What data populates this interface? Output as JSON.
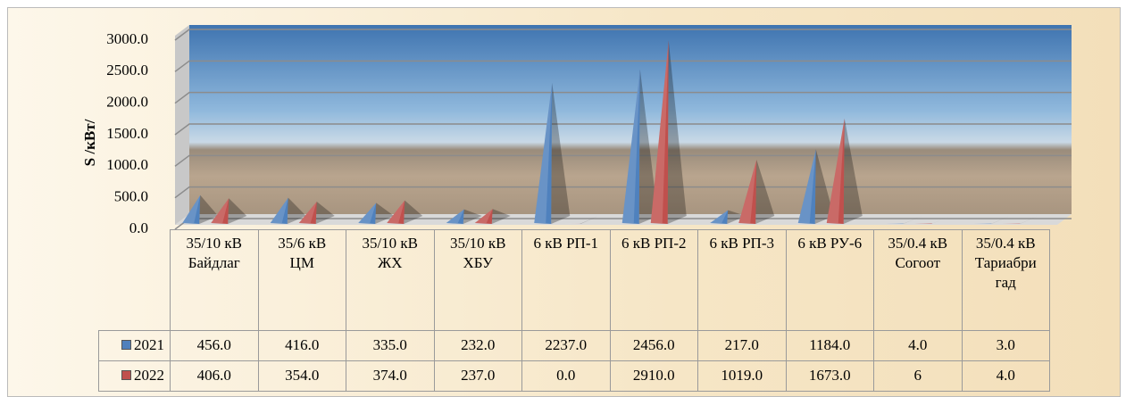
{
  "chart_data": {
    "type": "pyramid",
    "y_axis_label": "S /кВт/",
    "categories": [
      "35/10 кВ Байдлаг",
      "35/6 кВ ЦМ",
      "35/10 кВ ЖХ",
      "35/10 кВ ХБУ",
      "6 кВ РП-1",
      "6 кВ РП-2",
      "6 кВ РП-3",
      "6 кВ РУ-6",
      "35/0.4 кВ Согоот",
      "35/0.4 кВ Тариабригад"
    ],
    "series": [
      {
        "name": "2021",
        "color": "#4f81bd",
        "values": [
          456,
          416,
          335,
          232,
          2237,
          2456,
          217,
          1184,
          4,
          3
        ],
        "value_labels": [
          "456.0",
          "416.0",
          "335.0",
          "232.0",
          "2237.0",
          "2456.0",
          "217.0",
          "1184.0",
          "4.0",
          "3.0"
        ]
      },
      {
        "name": "2022",
        "color": "#c0504d",
        "values": [
          406,
          354,
          374,
          237,
          0,
          2910,
          1019,
          1673,
          6,
          4
        ],
        "value_labels": [
          "406.0",
          "354.0",
          "374.0",
          "237.0",
          "0.0",
          "2910.0",
          "1019.0",
          "1673.0",
          "6",
          "4.0"
        ]
      }
    ],
    "ylim": [
      0,
      3000
    ],
    "yticks": [
      {
        "value": 0,
        "label": "0.0"
      },
      {
        "value": 500,
        "label": "500.0"
      },
      {
        "value": 1000,
        "label": "1000.0"
      },
      {
        "value": 1500,
        "label": "1500.0"
      },
      {
        "value": 2000,
        "label": "2000.0"
      },
      {
        "value": 2500,
        "label": "2500.0"
      },
      {
        "value": 3000,
        "label": "3000.0"
      }
    ],
    "grid": true
  }
}
